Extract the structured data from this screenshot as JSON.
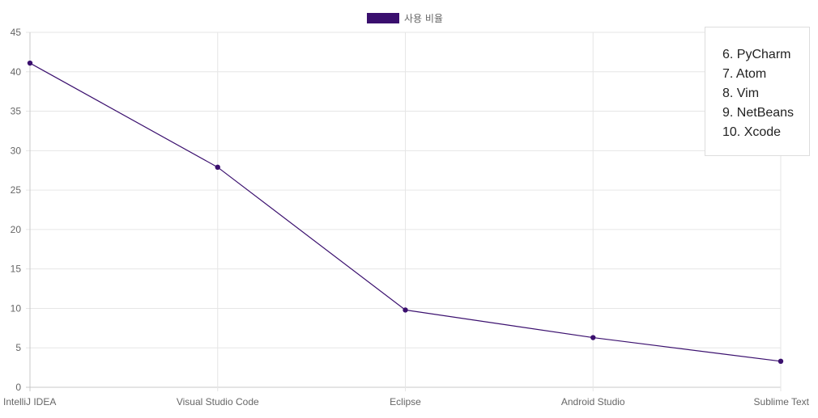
{
  "chart_data": {
    "type": "line",
    "categories": [
      "IntelliJ IDEA",
      "Visual Studio Code",
      "Eclipse",
      "Android Studio",
      "Sublime Text"
    ],
    "series": [
      {
        "name": "사용 비율",
        "values": [
          41.1,
          27.9,
          9.8,
          6.3,
          3.3
        ]
      }
    ],
    "ylim": [
      0,
      45
    ],
    "yticks": [
      "0",
      "5",
      "10",
      "15",
      "20",
      "25",
      "30",
      "35",
      "40",
      "45"
    ],
    "grid": true,
    "legend": "top-center",
    "color": "#3a0f6e"
  },
  "side_list": {
    "items": [
      "6. PyCharm",
      "7. Atom",
      "8. Vim",
      "9. NetBeans",
      "10. Xcode"
    ]
  }
}
